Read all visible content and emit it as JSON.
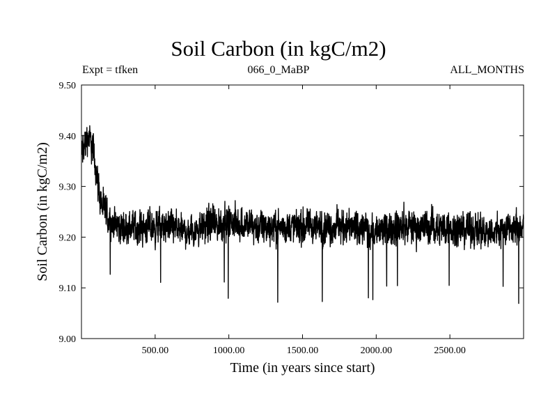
{
  "chart_data": {
    "type": "line",
    "title": "Soil Carbon (in kgC/m2)",
    "expt_label": "Expt = tfken",
    "subtitle_center": "066_0_MaBP",
    "subtitle_right": "ALL_MONTHS",
    "xlabel": "Time (in years since start)",
    "ylabel": "Soil Carbon (in kgC/m2)",
    "xlim": [
      0,
      3000
    ],
    "ylim": [
      9.0,
      9.5
    ],
    "xticks": [
      500,
      1000,
      1500,
      2000,
      2500
    ],
    "xtick_labels": [
      "500.00",
      "1000.00",
      "1500.00",
      "2000.00",
      "2500.00"
    ],
    "yticks": [
      9.0,
      9.1,
      9.2,
      9.3,
      9.4,
      9.5
    ],
    "ytick_labels": [
      "9.00",
      "9.10",
      "9.20",
      "9.30",
      "9.40",
      "9.50"
    ],
    "series": [
      {
        "color": "#000000",
        "x": [
          0,
          20,
          40,
          60,
          80,
          100,
          120,
          140,
          160,
          180,
          200,
          250,
          300,
          400,
          500,
          600,
          700,
          800,
          1000,
          1200,
          1500,
          1800,
          2000,
          2200,
          2500,
          2800,
          3000
        ],
        "y": [
          9.36,
          9.38,
          9.4,
          9.39,
          9.37,
          9.33,
          9.29,
          9.26,
          9.25,
          9.24,
          9.23,
          9.22,
          9.22,
          9.22,
          9.22,
          9.22,
          9.21,
          9.22,
          9.23,
          9.22,
          9.22,
          9.22,
          9.21,
          9.22,
          9.22,
          9.21,
          9.22
        ],
        "noise_amplitude": [
          0.08,
          0.08,
          0.07,
          0.07,
          0.07,
          0.07,
          0.07,
          0.07,
          0.07,
          0.07,
          0.07,
          0.07,
          0.07,
          0.07,
          0.07,
          0.07,
          0.07,
          0.07,
          0.07,
          0.07,
          0.07,
          0.07,
          0.07,
          0.07,
          0.07,
          0.07,
          0.07
        ],
        "min_value": 9.015,
        "max_value": 9.5
      }
    ],
    "grid": false,
    "legend": "none"
  }
}
